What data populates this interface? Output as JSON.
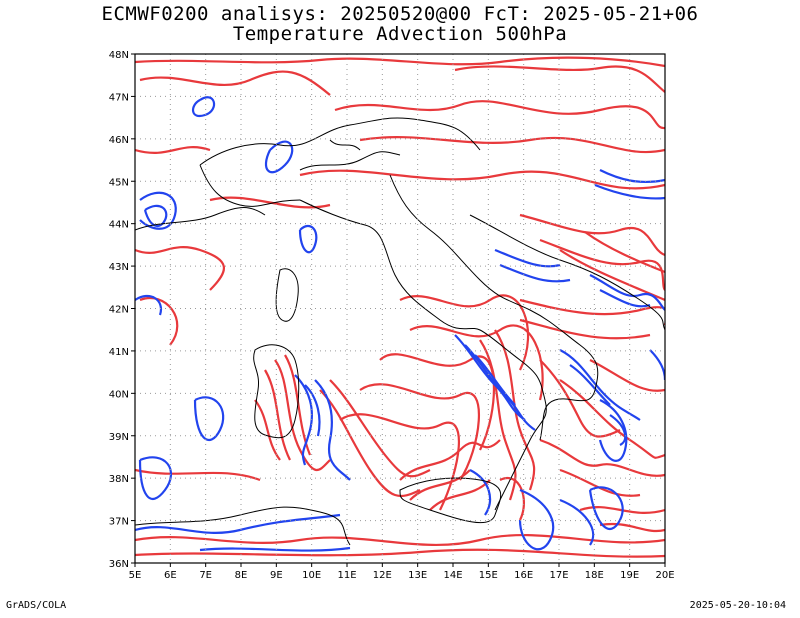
{
  "header": {
    "line1": "ECMWF0200 analisys: 20250520@00 FcT: 2025-05-21+06",
    "line2": "Temperature Advection 500hPa"
  },
  "footer": {
    "credit": "GrADS/COLA",
    "timestamp": "2025-05-20-10:04"
  },
  "map": {
    "lon_range": [
      5,
      20
    ],
    "lat_range": [
      36,
      48
    ],
    "lon_labels": [
      "5E",
      "6E",
      "7E",
      "8E",
      "9E",
      "10E",
      "11E",
      "12E",
      "13E",
      "14E",
      "15E",
      "16E",
      "17E",
      "18E",
      "19E",
      "20E"
    ],
    "lat_labels": [
      "36N",
      "37N",
      "38N",
      "39N",
      "40N",
      "41N",
      "42N",
      "43N",
      "44N",
      "45N",
      "46N",
      "47N",
      "48N"
    ],
    "colors": {
      "positive_contour": "#e8393c",
      "negative_contour": "#2244ee",
      "coastline": "#000000",
      "grid": "#9a9a9a"
    }
  }
}
